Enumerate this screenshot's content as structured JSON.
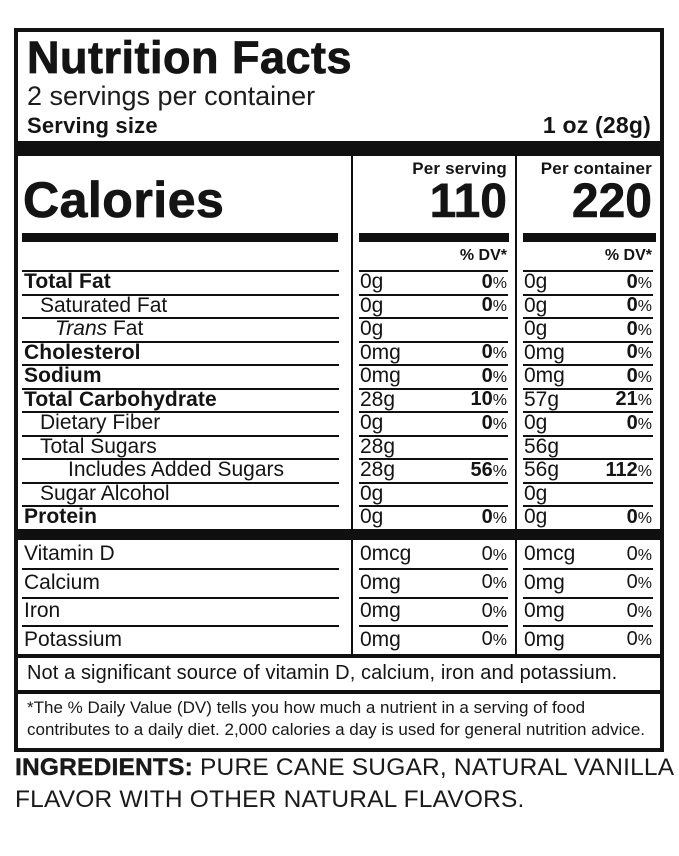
{
  "label": {
    "title": "Nutrition Facts",
    "servings_per_container": "2 servings per container",
    "serving_size_label": "Serving size",
    "serving_size_value": "1 oz (28g)",
    "calories": {
      "word": "Calories",
      "dv_header": "% DV*",
      "columns": [
        {
          "header": "Per serving",
          "value": "110"
        },
        {
          "header": "Per container",
          "value": "220"
        }
      ]
    },
    "nutrients": [
      {
        "name": "Total Fat",
        "bold": true,
        "indent": 0,
        "cols": [
          {
            "amount": "0g",
            "dv": "0%"
          },
          {
            "amount": "0g",
            "dv": "0%"
          }
        ]
      },
      {
        "name": "Saturated Fat",
        "bold": false,
        "indent": 1,
        "cols": [
          {
            "amount": "0g",
            "dv": "0%"
          },
          {
            "amount": "0g",
            "dv": "0%"
          }
        ]
      },
      {
        "name": "Fat",
        "italic_prefix": "Trans",
        "bold": false,
        "indent": 2,
        "cols": [
          {
            "amount": "0g",
            "dv": null
          },
          {
            "amount": "0g",
            "dv": "0%"
          }
        ]
      },
      {
        "name": "Cholesterol",
        "bold": true,
        "indent": 0,
        "cols": [
          {
            "amount": "0mg",
            "dv": "0%"
          },
          {
            "amount": "0mg",
            "dv": "0%"
          }
        ]
      },
      {
        "name": "Sodium",
        "bold": true,
        "indent": 0,
        "cols": [
          {
            "amount": "0mg",
            "dv": "0%"
          },
          {
            "amount": "0mg",
            "dv": "0%"
          }
        ]
      },
      {
        "name": "Total Carbohydrate",
        "bold": true,
        "indent": 0,
        "cols": [
          {
            "amount": "28g",
            "dv": "10%"
          },
          {
            "amount": "57g",
            "dv": "21%"
          }
        ]
      },
      {
        "name": "Dietary Fiber",
        "bold": false,
        "indent": 1,
        "cols": [
          {
            "amount": "0g",
            "dv": "0%"
          },
          {
            "amount": "0g",
            "dv": "0%"
          }
        ]
      },
      {
        "name": "Total Sugars",
        "bold": false,
        "indent": 1,
        "cols": [
          {
            "amount": "28g",
            "dv": null
          },
          {
            "amount": "56g",
            "dv": null
          }
        ]
      },
      {
        "name": "Includes Added Sugars",
        "bold": false,
        "indent": 3,
        "cols": [
          {
            "amount": "28g",
            "dv": "56%"
          },
          {
            "amount": "56g",
            "dv": "112%"
          }
        ]
      },
      {
        "name": "Sugar Alcohol",
        "bold": false,
        "indent": 1,
        "cols": [
          {
            "amount": "0g",
            "dv": null
          },
          {
            "amount": "0g",
            "dv": null
          }
        ]
      },
      {
        "name": "Protein",
        "bold": true,
        "indent": 0,
        "cols": [
          {
            "amount": "0g",
            "dv": "0%"
          },
          {
            "amount": "0g",
            "dv": "0%"
          }
        ]
      }
    ],
    "vitamins": [
      {
        "name": "Vitamin D",
        "bold": false,
        "indent": 0,
        "cols": [
          {
            "amount": "0mcg",
            "dv": "0%"
          },
          {
            "amount": "0mcg",
            "dv": "0%"
          }
        ]
      },
      {
        "name": "Calcium",
        "bold": false,
        "indent": 0,
        "cols": [
          {
            "amount": "0mg",
            "dv": "0%"
          },
          {
            "amount": "0mg",
            "dv": "0%"
          }
        ]
      },
      {
        "name": "Iron",
        "bold": false,
        "indent": 0,
        "cols": [
          {
            "amount": "0mg",
            "dv": "0%"
          },
          {
            "amount": "0mg",
            "dv": "0%"
          }
        ]
      },
      {
        "name": "Potassium",
        "bold": false,
        "indent": 0,
        "cols": [
          {
            "amount": "0mg",
            "dv": "0%"
          },
          {
            "amount": "0mg",
            "dv": "0%"
          }
        ]
      }
    ],
    "not_significant": "Not a significant source of vitamin D, calcium, iron and potassium.",
    "footnote_line1": "*The % Daily Value (DV) tells you how much a nutrient in a serving of food",
    "footnote_line2": "contributes to a daily diet. 2,000 calories a day is used for general nutrition advice."
  },
  "ingredients": {
    "label": "INGREDIENTS:",
    "text": " PURE CANE SUGAR, NATURAL VANILLA FLAVOR WITH OTHER NATURAL FLAVORS."
  }
}
